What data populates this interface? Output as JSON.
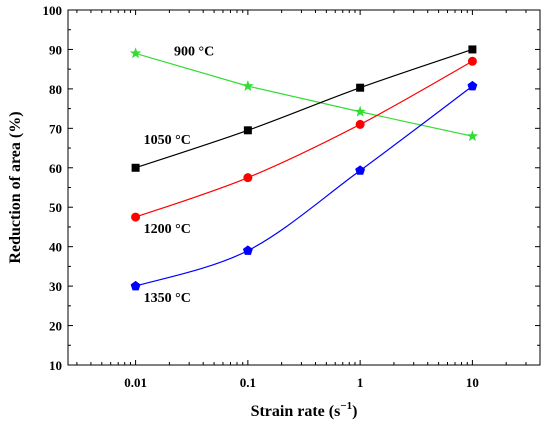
{
  "chart_data": {
    "type": "line",
    "xscale": "log",
    "x": [
      0.01,
      0.1,
      1,
      10
    ],
    "x_tick_labels": [
      "0.01",
      "0.1",
      "1",
      "10"
    ],
    "xlabel": "Strain rate (s",
    "xlabel_sup": "−1",
    "xlabel_close": ")",
    "ylabel": "Reduction of area (%)",
    "ylim": [
      10,
      100
    ],
    "y_ticks": [
      10,
      20,
      30,
      40,
      50,
      60,
      70,
      80,
      90,
      100
    ],
    "series": [
      {
        "name": "900 °C",
        "values": [
          89,
          80.7,
          74.2,
          68
        ],
        "color": "#33dd33",
        "marker": "star",
        "curve": "straight"
      },
      {
        "name": "1050 °C",
        "values": [
          60,
          69.5,
          80.3,
          90
        ],
        "color": "#000000",
        "marker": "square",
        "curve": "smooth"
      },
      {
        "name": "1200 °C",
        "values": [
          47.5,
          57.5,
          71,
          87
        ],
        "color": "#ff0000",
        "marker": "circle",
        "curve": "smooth"
      },
      {
        "name": "1350 °C",
        "values": [
          30,
          39,
          59.3,
          80.7
        ],
        "color": "#0000ff",
        "marker": "pentagon",
        "curve": "smooth"
      }
    ]
  }
}
